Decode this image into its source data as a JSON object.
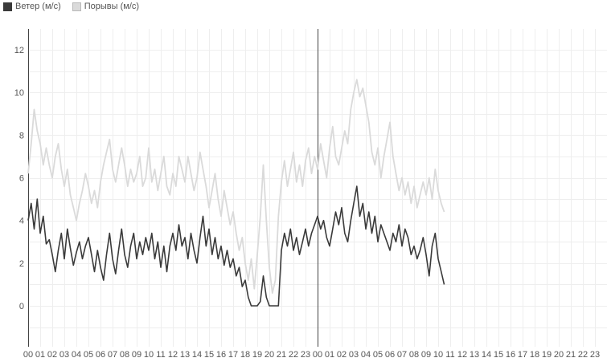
{
  "chart_data": {
    "type": "line",
    "title": "",
    "xlabel": "",
    "ylabel": "",
    "ylim": [
      -2,
      13
    ],
    "yticks": [
      0,
      2,
      4,
      6,
      8,
      10,
      12
    ],
    "grid": true,
    "legend_position": "top-left",
    "hour_labels": [
      "00",
      "01",
      "02",
      "03",
      "04",
      "05",
      "06",
      "07",
      "08",
      "09",
      "10",
      "11",
      "12",
      "13",
      "14",
      "15",
      "16",
      "17",
      "18",
      "19",
      "20",
      "21",
      "22",
      "23",
      "00",
      "01",
      "02",
      "03",
      "04",
      "05",
      "06",
      "07",
      "08",
      "09",
      "10",
      "11",
      "12",
      "13",
      "14",
      "15",
      "16",
      "17",
      "18",
      "19",
      "20",
      "21",
      "22",
      "23"
    ],
    "day_boundaries_hours": [
      0,
      24
    ],
    "xlim_hours": [
      0,
      48
    ],
    "series": [
      {
        "name": "Ветер (м/с)",
        "color": "#3a3a3a",
        "points": [
          [
            0,
            4.0
          ],
          [
            0.25,
            4.8
          ],
          [
            0.5,
            3.6
          ],
          [
            0.75,
            5.0
          ],
          [
            1,
            3.4
          ],
          [
            1.25,
            4.2
          ],
          [
            1.5,
            2.9
          ],
          [
            1.75,
            3.1
          ],
          [
            2,
            2.4
          ],
          [
            2.25,
            1.6
          ],
          [
            2.5,
            2.6
          ],
          [
            2.75,
            3.4
          ],
          [
            3,
            2.2
          ],
          [
            3.25,
            3.6
          ],
          [
            3.5,
            2.7
          ],
          [
            3.75,
            1.9
          ],
          [
            4,
            2.5
          ],
          [
            4.25,
            3.0
          ],
          [
            4.5,
            2.2
          ],
          [
            4.75,
            2.8
          ],
          [
            5,
            3.2
          ],
          [
            5.25,
            2.4
          ],
          [
            5.5,
            1.6
          ],
          [
            5.75,
            2.6
          ],
          [
            6,
            1.8
          ],
          [
            6.25,
            1.2
          ],
          [
            6.5,
            2.4
          ],
          [
            6.75,
            3.4
          ],
          [
            7,
            2.2
          ],
          [
            7.25,
            1.5
          ],
          [
            7.5,
            2.6
          ],
          [
            7.75,
            3.6
          ],
          [
            8,
            2.4
          ],
          [
            8.25,
            1.8
          ],
          [
            8.5,
            2.8
          ],
          [
            8.75,
            3.4
          ],
          [
            9,
            2.2
          ],
          [
            9.25,
            3.0
          ],
          [
            9.5,
            2.4
          ],
          [
            9.75,
            3.2
          ],
          [
            10,
            2.6
          ],
          [
            10.25,
            3.4
          ],
          [
            10.5,
            2.2
          ],
          [
            10.75,
            3.0
          ],
          [
            11,
            1.8
          ],
          [
            11.25,
            2.8
          ],
          [
            11.5,
            1.6
          ],
          [
            11.75,
            2.8
          ],
          [
            12,
            3.4
          ],
          [
            12.25,
            2.6
          ],
          [
            12.5,
            3.8
          ],
          [
            12.75,
            2.8
          ],
          [
            13,
            3.2
          ],
          [
            13.25,
            2.2
          ],
          [
            13.5,
            3.4
          ],
          [
            13.75,
            2.6
          ],
          [
            14,
            2.0
          ],
          [
            14.25,
            3.2
          ],
          [
            14.5,
            4.2
          ],
          [
            14.75,
            2.8
          ],
          [
            15,
            3.6
          ],
          [
            15.25,
            2.4
          ],
          [
            15.5,
            3.2
          ],
          [
            15.75,
            2.2
          ],
          [
            16,
            2.8
          ],
          [
            16.25,
            1.9
          ],
          [
            16.5,
            2.6
          ],
          [
            16.75,
            1.8
          ],
          [
            17,
            2.2
          ],
          [
            17.25,
            1.4
          ],
          [
            17.5,
            1.8
          ],
          [
            17.75,
            0.9
          ],
          [
            18,
            1.2
          ],
          [
            18.25,
            0.4
          ],
          [
            18.5,
            0.0
          ],
          [
            18.75,
            0.0
          ],
          [
            19,
            0.0
          ],
          [
            19.25,
            0.2
          ],
          [
            19.5,
            1.4
          ],
          [
            19.75,
            0.4
          ],
          [
            20,
            0.0
          ],
          [
            20.25,
            0.0
          ],
          [
            20.5,
            0.0
          ],
          [
            20.75,
            0.0
          ],
          [
            21,
            2.6
          ],
          [
            21.25,
            3.4
          ],
          [
            21.5,
            2.8
          ],
          [
            21.75,
            3.6
          ],
          [
            22,
            2.6
          ],
          [
            22.25,
            3.2
          ],
          [
            22.5,
            2.4
          ],
          [
            22.75,
            3.0
          ],
          [
            23,
            3.6
          ],
          [
            23.25,
            2.8
          ],
          [
            23.5,
            3.4
          ],
          [
            23.75,
            3.8
          ],
          [
            24,
            4.2
          ],
          [
            24.25,
            3.6
          ],
          [
            24.5,
            4.0
          ],
          [
            24.75,
            3.2
          ],
          [
            25,
            2.8
          ],
          [
            25.25,
            3.6
          ],
          [
            25.5,
            4.4
          ],
          [
            25.75,
            3.8
          ],
          [
            26,
            4.6
          ],
          [
            26.25,
            3.4
          ],
          [
            26.5,
            3.0
          ],
          [
            26.75,
            4.0
          ],
          [
            27,
            4.8
          ],
          [
            27.25,
            5.6
          ],
          [
            27.5,
            4.2
          ],
          [
            27.75,
            4.8
          ],
          [
            28,
            3.6
          ],
          [
            28.25,
            4.4
          ],
          [
            28.5,
            3.4
          ],
          [
            28.75,
            4.2
          ],
          [
            29,
            3.0
          ],
          [
            29.25,
            3.8
          ],
          [
            29.5,
            3.4
          ],
          [
            29.75,
            3.0
          ],
          [
            30,
            2.6
          ],
          [
            30.25,
            3.4
          ],
          [
            30.5,
            3.0
          ],
          [
            30.75,
            3.8
          ],
          [
            31,
            2.8
          ],
          [
            31.25,
            3.6
          ],
          [
            31.5,
            3.2
          ],
          [
            31.75,
            2.4
          ],
          [
            32,
            2.8
          ],
          [
            32.25,
            2.2
          ],
          [
            32.5,
            2.6
          ],
          [
            32.75,
            3.2
          ],
          [
            33,
            2.4
          ],
          [
            33.25,
            1.4
          ],
          [
            33.5,
            2.8
          ],
          [
            33.75,
            3.4
          ],
          [
            34,
            2.2
          ],
          [
            34.25,
            1.6
          ],
          [
            34.5,
            1.0
          ]
        ]
      },
      {
        "name": "Порывы (м/с)",
        "color": "#dadada",
        "points": [
          [
            0,
            6.2
          ],
          [
            0.25,
            7.6
          ],
          [
            0.5,
            9.2
          ],
          [
            0.75,
            8.2
          ],
          [
            1,
            7.6
          ],
          [
            1.25,
            6.6
          ],
          [
            1.5,
            7.4
          ],
          [
            1.75,
            6.6
          ],
          [
            2,
            6.0
          ],
          [
            2.25,
            7.0
          ],
          [
            2.5,
            7.6
          ],
          [
            2.75,
            6.4
          ],
          [
            3,
            5.6
          ],
          [
            3.25,
            6.4
          ],
          [
            3.5,
            5.2
          ],
          [
            3.75,
            4.6
          ],
          [
            4,
            4.0
          ],
          [
            4.25,
            4.8
          ],
          [
            4.5,
            5.4
          ],
          [
            4.75,
            6.2
          ],
          [
            5,
            5.6
          ],
          [
            5.25,
            4.8
          ],
          [
            5.5,
            5.4
          ],
          [
            5.75,
            4.6
          ],
          [
            6,
            5.8
          ],
          [
            6.25,
            6.6
          ],
          [
            6.5,
            7.2
          ],
          [
            6.75,
            7.8
          ],
          [
            7,
            6.4
          ],
          [
            7.25,
            5.8
          ],
          [
            7.5,
            6.6
          ],
          [
            7.75,
            7.4
          ],
          [
            8,
            6.6
          ],
          [
            8.25,
            5.6
          ],
          [
            8.5,
            6.4
          ],
          [
            8.75,
            5.8
          ],
          [
            9,
            6.2
          ],
          [
            9.25,
            7.0
          ],
          [
            9.5,
            5.6
          ],
          [
            9.75,
            6.0
          ],
          [
            10,
            7.4
          ],
          [
            10.25,
            5.8
          ],
          [
            10.5,
            6.4
          ],
          [
            10.75,
            5.4
          ],
          [
            11,
            6.2
          ],
          [
            11.25,
            7.0
          ],
          [
            11.5,
            5.6
          ],
          [
            11.75,
            5.2
          ],
          [
            12,
            6.2
          ],
          [
            12.25,
            5.6
          ],
          [
            12.5,
            7.0
          ],
          [
            12.75,
            6.4
          ],
          [
            13,
            5.8
          ],
          [
            13.25,
            7.0
          ],
          [
            13.5,
            6.2
          ],
          [
            13.75,
            5.4
          ],
          [
            14,
            6.0
          ],
          [
            14.25,
            7.2
          ],
          [
            14.5,
            6.4
          ],
          [
            14.75,
            5.6
          ],
          [
            15,
            4.6
          ],
          [
            15.25,
            5.4
          ],
          [
            15.5,
            6.2
          ],
          [
            15.75,
            5.0
          ],
          [
            16,
            4.2
          ],
          [
            16.25,
            5.4
          ],
          [
            16.5,
            4.6
          ],
          [
            16.75,
            3.8
          ],
          [
            17,
            4.4
          ],
          [
            17.25,
            3.4
          ],
          [
            17.5,
            2.6
          ],
          [
            17.75,
            3.2
          ],
          [
            18,
            2.0
          ],
          [
            18.25,
            1.2
          ],
          [
            18.5,
            2.2
          ],
          [
            18.75,
            0.8
          ],
          [
            19,
            2.4
          ],
          [
            19.25,
            4.2
          ],
          [
            19.5,
            6.6
          ],
          [
            19.75,
            4.0
          ],
          [
            20,
            1.8
          ],
          [
            20.25,
            0.6
          ],
          [
            20.5,
            1.2
          ],
          [
            20.75,
            4.2
          ],
          [
            21,
            5.8
          ],
          [
            21.25,
            6.8
          ],
          [
            21.5,
            5.6
          ],
          [
            21.75,
            6.4
          ],
          [
            22,
            7.2
          ],
          [
            22.25,
            5.8
          ],
          [
            22.5,
            6.6
          ],
          [
            22.75,
            5.6
          ],
          [
            23,
            6.8
          ],
          [
            23.25,
            7.4
          ],
          [
            23.5,
            6.2
          ],
          [
            23.75,
            7.0
          ],
          [
            24,
            6.4
          ],
          [
            24.25,
            7.6
          ],
          [
            24.5,
            6.8
          ],
          [
            24.75,
            6.0
          ],
          [
            25,
            7.4
          ],
          [
            25.25,
            8.4
          ],
          [
            25.5,
            7.0
          ],
          [
            25.75,
            6.6
          ],
          [
            26,
            7.4
          ],
          [
            26.25,
            8.2
          ],
          [
            26.5,
            7.6
          ],
          [
            26.75,
            9.2
          ],
          [
            27,
            10.0
          ],
          [
            27.25,
            10.6
          ],
          [
            27.5,
            9.8
          ],
          [
            27.75,
            10.2
          ],
          [
            28,
            9.4
          ],
          [
            28.25,
            8.6
          ],
          [
            28.5,
            7.2
          ],
          [
            28.75,
            6.6
          ],
          [
            29,
            7.4
          ],
          [
            29.25,
            6.0
          ],
          [
            29.5,
            7.0
          ],
          [
            29.75,
            7.8
          ],
          [
            30,
            8.6
          ],
          [
            30.25,
            7.0
          ],
          [
            30.5,
            6.2
          ],
          [
            30.75,
            5.4
          ],
          [
            31,
            6.0
          ],
          [
            31.25,
            5.2
          ],
          [
            31.5,
            5.8
          ],
          [
            31.75,
            4.8
          ],
          [
            32,
            5.6
          ],
          [
            32.25,
            4.6
          ],
          [
            32.5,
            5.2
          ],
          [
            32.75,
            5.8
          ],
          [
            33,
            5.2
          ],
          [
            33.25,
            6.0
          ],
          [
            33.5,
            5.0
          ],
          [
            33.75,
            6.4
          ],
          [
            34,
            5.4
          ],
          [
            34.25,
            4.8
          ],
          [
            34.5,
            4.4
          ]
        ]
      }
    ]
  }
}
